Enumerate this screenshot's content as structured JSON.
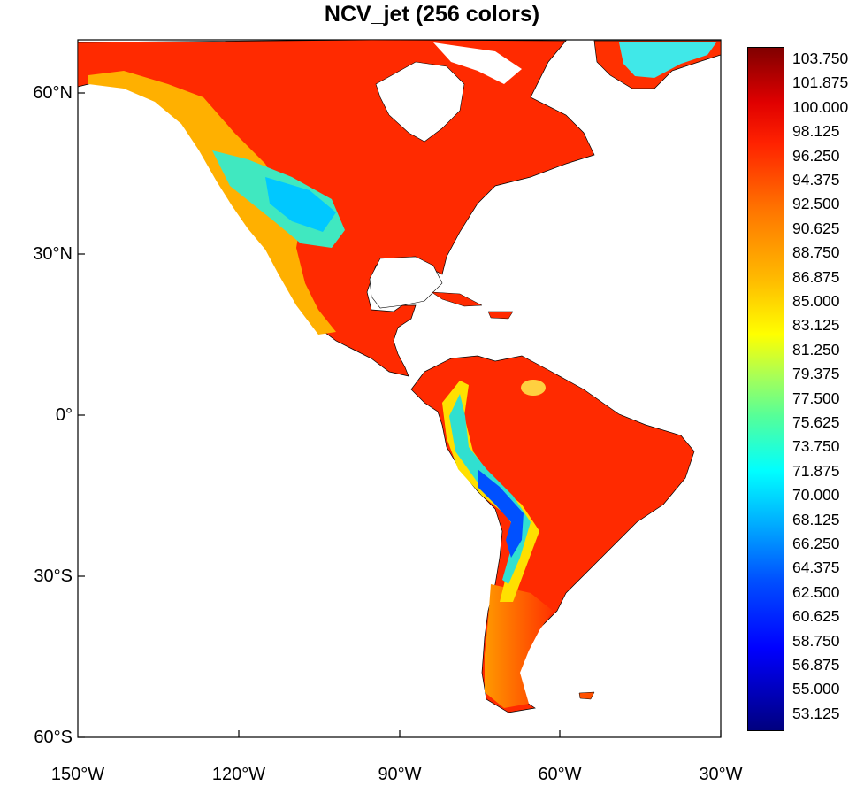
{
  "title": "NCV_jet (256 colors)",
  "y_ticks": [
    "60°N",
    "30°N",
    "0°",
    "30°S",
    "60°S"
  ],
  "x_ticks": [
    "150°W",
    "120°W",
    "90°W",
    "60°W",
    "30°W"
  ],
  "colorbar": {
    "labels": [
      "103.750",
      "101.875",
      "100.000",
      "98.125",
      "96.250",
      "94.375",
      "92.500",
      "90.625",
      "88.750",
      "86.875",
      "85.000",
      "83.125",
      "81.250",
      "79.375",
      "77.500",
      "75.625",
      "73.750",
      "71.875",
      "70.000",
      "68.125",
      "66.250",
      "64.375",
      "62.500",
      "60.625",
      "58.750",
      "56.875",
      "55.000",
      "53.125"
    ],
    "colors": [
      "#00007f",
      "#0000ff",
      "#00aaff",
      "#00ffff",
      "#ffff00",
      "#ff7700",
      "#ff2200",
      "#800000"
    ]
  }
}
